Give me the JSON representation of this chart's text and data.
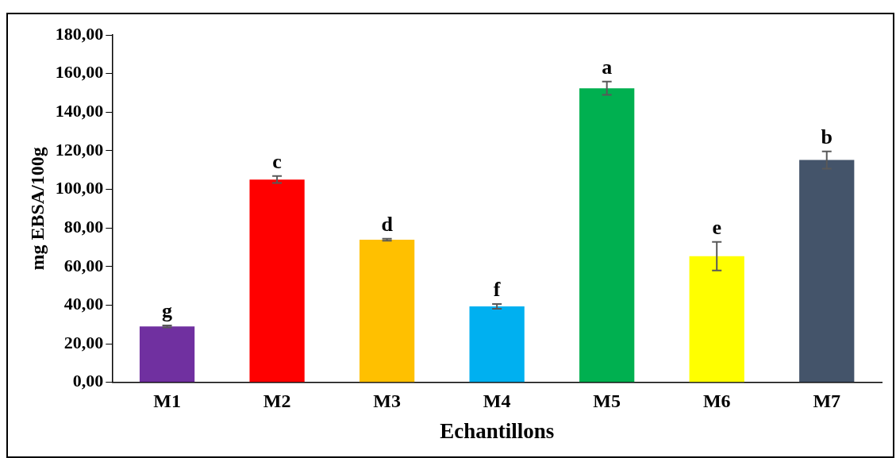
{
  "chart_data": {
    "type": "bar",
    "xlabel": "Echantillons",
    "ylabel": "mg EBSA/100g",
    "categories": [
      "M1",
      "M2",
      "M3",
      "M4",
      "M5",
      "M6",
      "M7"
    ],
    "values": [
      29.0,
      105.1,
      73.9,
      39.4,
      152.4,
      65.4,
      115.2
    ],
    "colors": [
      "#7030a0",
      "#ff0000",
      "#ffc000",
      "#00b0f0",
      "#00b050",
      "#ffff00",
      "#44546a"
    ],
    "errors": [
      0.5,
      1.8,
      0.5,
      1.2,
      3.4,
      7.4,
      4.5
    ],
    "ylim": [
      0,
      180
    ],
    "yticks": [
      {
        "value": 0,
        "label": "0,00"
      },
      {
        "value": 20,
        "label": "20,00"
      },
      {
        "value": 40,
        "label": "40,00"
      },
      {
        "value": 60,
        "label": "60,00"
      },
      {
        "value": 80,
        "label": "80,00"
      },
      {
        "value": 100,
        "label": "100,00"
      },
      {
        "value": 120,
        "label": "120,00"
      },
      {
        "value": 140,
        "label": "140,00"
      },
      {
        "value": 160,
        "label": "160,00"
      },
      {
        "value": 180,
        "label": "180,00"
      }
    ],
    "annotations": [
      "g",
      "c",
      "d",
      "f",
      "a",
      "e",
      "b"
    ],
    "grid": false,
    "legend": false
  }
}
